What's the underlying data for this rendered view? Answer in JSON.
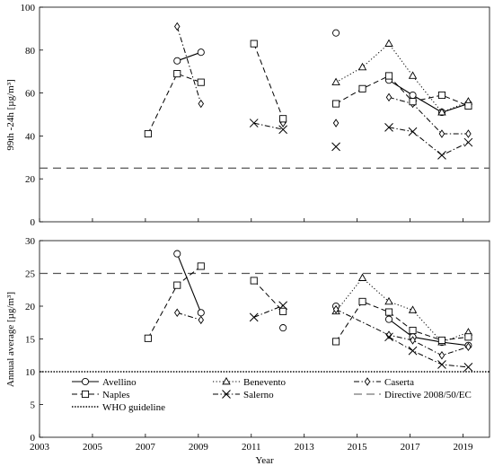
{
  "chart_data": [
    {
      "type": "line",
      "title": "",
      "xlabel": "",
      "ylabel": "99th -24h [µg/m³]",
      "xlim": [
        2003,
        2020
      ],
      "ylim": [
        0,
        100
      ],
      "x_ticks": [
        2003,
        2005,
        2007,
        2009,
        2011,
        2013,
        2015,
        2017,
        2019
      ],
      "y_ticks": [
        0,
        20,
        40,
        60,
        80,
        100
      ],
      "grid": false,
      "reference_lines": [
        {
          "name": "Directive 2008/50/EC",
          "value": 25,
          "style": "dashed"
        }
      ],
      "series": [
        {
          "name": "Avellino",
          "style": "solid",
          "marker": "circle",
          "points": [
            [
              2008.2,
              75
            ],
            [
              2009.1,
              79
            ],
            [
              2012.2,
              47
            ],
            [
              2014.2,
              88
            ],
            [
              2016.2,
              66
            ],
            [
              2017.1,
              59
            ],
            [
              2018.2,
              51
            ],
            [
              2019.2,
              55
            ]
          ],
          "segments": [
            [
              0,
              1
            ],
            [
              4,
              5,
              6,
              7
            ]
          ]
        },
        {
          "name": "Benevento",
          "style": "dotted",
          "marker": "triangle",
          "points": [
            [
              2014.2,
              65
            ],
            [
              2015.2,
              72
            ],
            [
              2016.2,
              83
            ],
            [
              2017.1,
              68
            ],
            [
              2018.2,
              51
            ],
            [
              2019.2,
              56
            ]
          ],
          "segments": [
            [
              0,
              1,
              2,
              3,
              4,
              5
            ]
          ]
        },
        {
          "name": "Caserta",
          "style": "dashdot",
          "marker": "diamond",
          "points": [
            [
              2008.2,
              91
            ],
            [
              2009.1,
              55
            ],
            [
              2012.2,
              46
            ],
            [
              2014.2,
              46
            ],
            [
              2016.2,
              58
            ],
            [
              2017.1,
              55
            ],
            [
              2018.2,
              41
            ],
            [
              2019.2,
              41
            ]
          ],
          "segments": [
            [
              0,
              1
            ],
            [
              4,
              5,
              6,
              7
            ]
          ]
        },
        {
          "name": "Naples",
          "style": "dashed",
          "marker": "square",
          "points": [
            [
              2007.1,
              41
            ],
            [
              2008.2,
              69
            ],
            [
              2009.1,
              65
            ],
            [
              2011.1,
              83
            ],
            [
              2012.2,
              48
            ],
            [
              2014.2,
              55
            ],
            [
              2015.2,
              62
            ],
            [
              2016.2,
              68
            ],
            [
              2017.1,
              56
            ],
            [
              2018.2,
              59
            ],
            [
              2019.2,
              54
            ]
          ],
          "segments": [
            [
              0,
              1,
              2
            ],
            [
              3,
              4
            ],
            [
              5,
              6,
              7,
              8,
              9,
              10
            ]
          ]
        },
        {
          "name": "Salerno",
          "style": "dashdot",
          "marker": "x",
          "points": [
            [
              2011.1,
              46
            ],
            [
              2012.2,
              43
            ],
            [
              2014.2,
              35
            ],
            [
              2016.2,
              44
            ],
            [
              2017.1,
              42
            ],
            [
              2018.2,
              31
            ],
            [
              2019.2,
              37
            ]
          ],
          "segments": [
            [
              0,
              1
            ],
            [
              3,
              4,
              5,
              6
            ]
          ]
        }
      ]
    },
    {
      "type": "line",
      "title": "",
      "xlabel": "Year",
      "ylabel": "Annual average [µg/m³]",
      "xlim": [
        2003,
        2020
      ],
      "ylim": [
        0,
        30
      ],
      "x_ticks": [
        2003,
        2005,
        2007,
        2009,
        2011,
        2013,
        2015,
        2017,
        2019
      ],
      "y_ticks": [
        0,
        5,
        10,
        15,
        20,
        25,
        30
      ],
      "grid": false,
      "legend_position": "lower-left",
      "reference_lines": [
        {
          "name": "Directive 2008/50/EC",
          "value": 25,
          "style": "dashed"
        },
        {
          "name": "WHO guideline",
          "value": 10,
          "style": "dotted"
        }
      ],
      "series": [
        {
          "name": "Avellino",
          "style": "solid",
          "marker": "circle",
          "points": [
            [
              2008.2,
              28
            ],
            [
              2009.1,
              19
            ],
            [
              2012.2,
              16.7
            ],
            [
              2014.2,
              20
            ],
            [
              2016.2,
              18
            ],
            [
              2017.1,
              15.3
            ],
            [
              2018.2,
              14.5
            ],
            [
              2019.2,
              14
            ]
          ],
          "segments": [
            [
              0,
              1
            ],
            [
              4,
              5,
              6,
              7
            ]
          ]
        },
        {
          "name": "Benevento",
          "style": "dotted",
          "marker": "triangle",
          "points": [
            [
              2014.2,
              19.2
            ],
            [
              2015.2,
              24.3
            ],
            [
              2016.2,
              20.7
            ],
            [
              2017.1,
              19.4
            ],
            [
              2018.2,
              14.5
            ],
            [
              2019.2,
              16
            ]
          ],
          "segments": [
            [
              0,
              1,
              2,
              3,
              4,
              5
            ]
          ]
        },
        {
          "name": "Caserta",
          "style": "dashdot",
          "marker": "diamond",
          "points": [
            [
              2008.2,
              19
            ],
            [
              2009.1,
              17.9
            ],
            [
              2014.2,
              19.5
            ],
            [
              2016.2,
              15.6
            ],
            [
              2017.1,
              14.8
            ],
            [
              2018.2,
              12.5
            ],
            [
              2019.2,
              13.8
            ]
          ],
          "segments": [
            [
              0,
              1
            ],
            [
              2,
              3,
              4,
              5,
              6
            ]
          ]
        },
        {
          "name": "Naples",
          "style": "dashed",
          "marker": "square",
          "points": [
            [
              2007.1,
              15.1
            ],
            [
              2008.2,
              23.2
            ],
            [
              2009.1,
              26.1
            ],
            [
              2011.1,
              23.9
            ],
            [
              2012.2,
              19.2
            ],
            [
              2014.2,
              14.6
            ],
            [
              2015.2,
              20.7
            ],
            [
              2016.2,
              19.1
            ],
            [
              2017.1,
              16.3
            ],
            [
              2018.2,
              14.8
            ],
            [
              2019.2,
              15.3
            ]
          ],
          "segments": [
            [
              0,
              1,
              2
            ],
            [
              3,
              4
            ],
            [
              5,
              6,
              7,
              8,
              9,
              10
            ]
          ]
        },
        {
          "name": "Salerno",
          "style": "dashdot",
          "marker": "x",
          "points": [
            [
              2011.1,
              18.3
            ],
            [
              2012.2,
              20.1
            ],
            [
              2016.2,
              15.3
            ],
            [
              2017.1,
              13.2
            ],
            [
              2018.2,
              11.1
            ],
            [
              2019.2,
              10.7
            ]
          ],
          "segments": [
            [
              0,
              1
            ],
            [
              2,
              3,
              4,
              5
            ]
          ]
        }
      ]
    }
  ],
  "legend": [
    {
      "label": "Avellino",
      "style": "solid",
      "marker": "circle"
    },
    {
      "label": "Benevento",
      "style": "dotted",
      "marker": "triangle"
    },
    {
      "label": "Caserta",
      "style": "dashdot",
      "marker": "diamond"
    },
    {
      "label": "Naples",
      "style": "dashed",
      "marker": "square"
    },
    {
      "label": "Salerno",
      "style": "dashdot",
      "marker": "x"
    },
    {
      "label": "Directive 2008/50/EC",
      "style": "dashed",
      "marker": "none"
    },
    {
      "label": "WHO guideline",
      "style": "dotted",
      "marker": "none"
    }
  ],
  "colors": {
    "ink": "#000000",
    "reference": "#555555"
  }
}
